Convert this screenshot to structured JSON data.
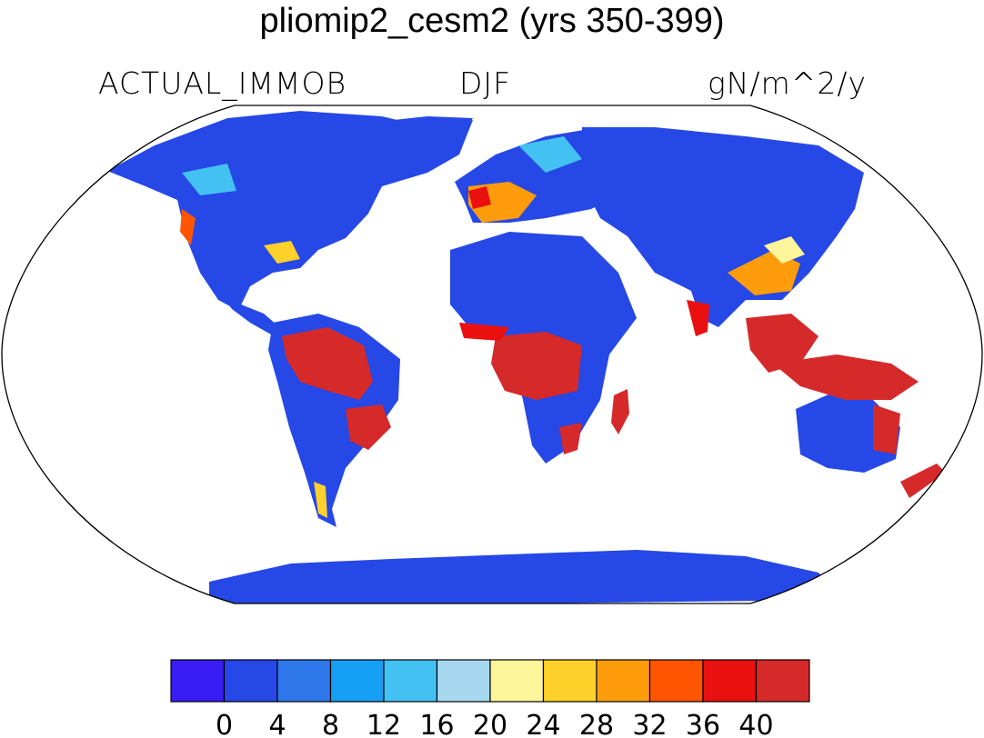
{
  "title": "pliomip2_cesm2 (yrs 350-399)",
  "subtitle_left": "ACTUAL_IMMOB",
  "subtitle_center": "DJF",
  "subtitle_right": "gN/m^2/y",
  "projection": "robinson",
  "colorbar": {
    "colors": [
      "#3a1cf5",
      "#2548e6",
      "#2f78eb",
      "#159ff5",
      "#44c1f3",
      "#a6d9ef",
      "#fff59a",
      "#ffd12a",
      "#ff9c0c",
      "#ff5400",
      "#ea1010",
      "#d5292a"
    ],
    "ticks": [
      "0",
      "4",
      "8",
      "12",
      "16",
      "20",
      "24",
      "28",
      "32",
      "36",
      "40"
    ]
  },
  "legend_colors": {
    "land_base": "#2548e6",
    "ocean": "#ffffff"
  }
}
